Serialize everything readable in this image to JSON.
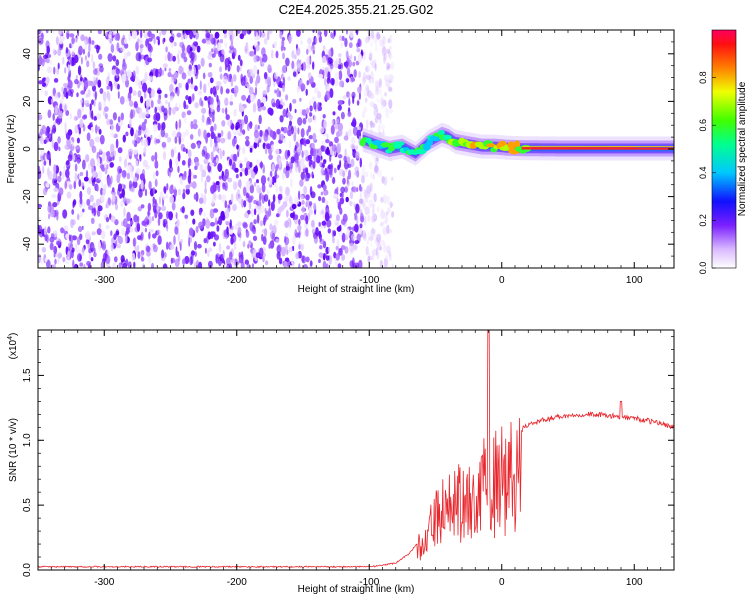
{
  "figure": {
    "title": "C2E4.2025.355.21.25.G02"
  },
  "chart_data": [
    {
      "type": "heatmap",
      "xlabel": "Height of straight line (km)",
      "ylabel": "Frequency (Hz)",
      "xlim": [
        -350,
        130
      ],
      "ylim": [
        -50,
        50
      ],
      "xticks": [
        -300,
        -200,
        -100,
        0,
        100
      ],
      "yticks": [
        -40,
        -20,
        0,
        20,
        40
      ],
      "noise_region_x": [
        -350,
        -105
      ],
      "signal_region_x": [
        -105,
        130
      ],
      "signal_track": [
        [
          -105,
          4
        ],
        [
          -95,
          2
        ],
        [
          -85,
          0
        ],
        [
          -75,
          1
        ],
        [
          -65,
          -2
        ],
        [
          -55,
          3
        ],
        [
          -45,
          6
        ],
        [
          -40,
          5
        ],
        [
          -35,
          3
        ],
        [
          -25,
          2
        ],
        [
          -15,
          1
        ],
        [
          -5,
          1
        ],
        [
          5,
          0.5
        ],
        [
          20,
          0.3
        ],
        [
          50,
          0.2
        ],
        [
          100,
          0.2
        ],
        [
          130,
          0.2
        ]
      ],
      "colorbar": {
        "label": "Normalized spectral amplitude",
        "range": [
          0,
          1
        ],
        "ticks": [
          "0.0",
          "0.2",
          "0.4",
          "0.6",
          "0.8"
        ],
        "tick_values": [
          0.0,
          0.2,
          0.4,
          0.6,
          0.8
        ]
      },
      "grid": false
    },
    {
      "type": "line",
      "xlabel": "Height of straight line (km)",
      "ylabel": "SNR (10 * v/v)",
      "scale_label": "(x10",
      "scale_exp": "4",
      "scale_close": ")",
      "xlim": [
        -350,
        130
      ],
      "ylim": [
        0,
        1.85
      ],
      "xticks": [
        -300,
        -200,
        -100,
        0,
        100
      ],
      "yticks": [
        "0.0",
        "0.5",
        "1.0",
        "1.5"
      ],
      "ytick_values": [
        0.0,
        0.5,
        1.0,
        1.5
      ],
      "series_color": "#e8262c",
      "grid": false,
      "series": [
        {
          "x": [
            -350,
            -300,
            -200,
            -120,
            -100,
            -90,
            -80,
            -70,
            -60,
            -55,
            -50,
            -45,
            -40,
            -35,
            -30,
            -25,
            -20,
            -15,
            -10,
            -5,
            0,
            5,
            10,
            20,
            30,
            40,
            50,
            60,
            70,
            80,
            90,
            100,
            110,
            120,
            130
          ],
          "y": [
            0.02,
            0.02,
            0.02,
            0.02,
            0.02,
            0.03,
            0.05,
            0.12,
            0.25,
            0.45,
            0.55,
            0.62,
            0.7,
            0.75,
            0.8,
            0.85,
            0.88,
            0.92,
            1.0,
            0.95,
            0.9,
            0.95,
            1.05,
            1.12,
            1.15,
            1.18,
            1.19,
            1.2,
            1.2,
            1.19,
            1.18,
            1.17,
            1.15,
            1.13,
            1.1
          ]
        }
      ]
    }
  ]
}
